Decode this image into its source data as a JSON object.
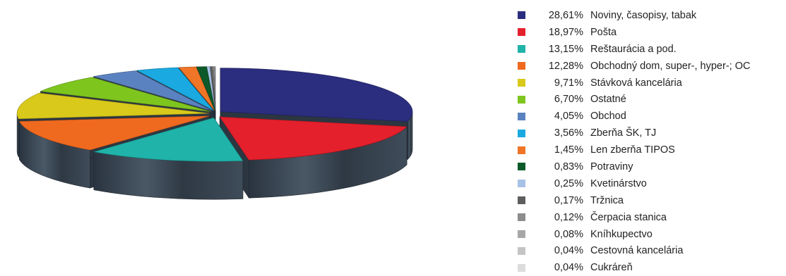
{
  "chart_data": {
    "type": "pie",
    "title": "",
    "legend_position": "right",
    "slices": [
      {
        "label": "Noviny, časopisy, tabak",
        "value": 28.61,
        "display": "28,61%",
        "color": "#2b2d7e"
      },
      {
        "label": "Pošta",
        "value": 18.97,
        "display": "18,97%",
        "color": "#e3202c"
      },
      {
        "label": "Reštaurácia a pod.",
        "value": 13.15,
        "display": "13,15%",
        "color": "#1fb3a9"
      },
      {
        "label": "Obchodný dom, super-, hyper-; OC",
        "value": 12.28,
        "display": "12,28%",
        "color": "#ef6a1f"
      },
      {
        "label": "Stávková kancelária",
        "value": 9.71,
        "display": "9,71%",
        "color": "#d8c91a"
      },
      {
        "label": "Ostatné",
        "value": 6.7,
        "display": "6,70%",
        "color": "#7ec51e"
      },
      {
        "label": "Obchod",
        "value": 4.05,
        "display": "4,05%",
        "color": "#5b82c0"
      },
      {
        "label": "Zberňa ŠK, TJ",
        "value": 3.56,
        "display": "3,56%",
        "color": "#1aa9e0"
      },
      {
        "label": "Len zberňa TIPOS",
        "value": 1.45,
        "display": "1,45%",
        "color": "#f07526"
      },
      {
        "label": "Potraviny",
        "value": 0.83,
        "display": "0,83%",
        "color": "#0c5a2a"
      },
      {
        "label": "Kvetinárstvo",
        "value": 0.25,
        "display": "0,25%",
        "color": "#a8c2e6"
      },
      {
        "label": "Tržnica",
        "value": 0.17,
        "display": "0,17%",
        "color": "#5e5e5e"
      },
      {
        "label": "Čerpacia stanica",
        "value": 0.12,
        "display": "0,12%",
        "color": "#8c8c8c"
      },
      {
        "label": "Kníhkupectvo",
        "value": 0.08,
        "display": "0,08%",
        "color": "#a7a7a7"
      },
      {
        "label": "Cestovná kancelária",
        "value": 0.04,
        "display": "0,04%",
        "color": "#c4c4c4"
      },
      {
        "label": "Cukráreň",
        "value": 0.04,
        "display": "0,04%",
        "color": "#dcdcdc"
      }
    ]
  }
}
